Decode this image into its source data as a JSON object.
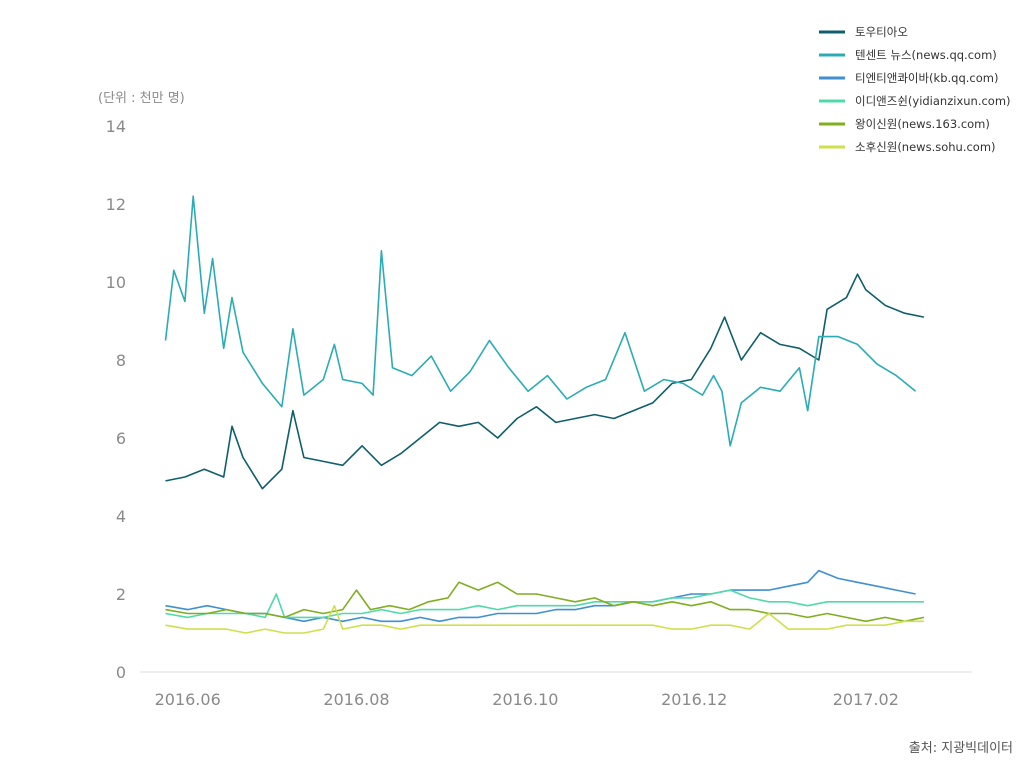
{
  "chart_data": {
    "type": "line",
    "unit_label": "(단위 : 천만 명)",
    "source_label": "출처: 지광빅데이터",
    "ylim": [
      0,
      14
    ],
    "yticks": [
      0,
      2,
      4,
      6,
      8,
      10,
      12,
      14
    ],
    "x_range": [
      "2016-05-22",
      "2017-02-26"
    ],
    "xticks": [
      {
        "date": "2016-06-01",
        "label": "2016.06"
      },
      {
        "date": "2016-08-01",
        "label": "2016.08"
      },
      {
        "date": "2016-10-01",
        "label": "2016.10"
      },
      {
        "date": "2016-12-01",
        "label": "2016.12"
      },
      {
        "date": "2017-02-01",
        "label": "2017.02"
      }
    ],
    "grid": false,
    "legend_position": "top-right",
    "series": [
      {
        "name": "토우티아오",
        "color": "#0e5f6b",
        "points": [
          [
            "2016-05-24",
            4.9
          ],
          [
            "2016-05-31",
            5.0
          ],
          [
            "2016-06-07",
            5.2
          ],
          [
            "2016-06-14",
            5.0
          ],
          [
            "2016-06-17",
            6.3
          ],
          [
            "2016-06-21",
            5.5
          ],
          [
            "2016-06-28",
            4.7
          ],
          [
            "2016-07-05",
            5.2
          ],
          [
            "2016-07-09",
            6.7
          ],
          [
            "2016-07-13",
            5.5
          ],
          [
            "2016-07-20",
            5.4
          ],
          [
            "2016-07-27",
            5.3
          ],
          [
            "2016-08-03",
            5.8
          ],
          [
            "2016-08-10",
            5.3
          ],
          [
            "2016-08-17",
            5.6
          ],
          [
            "2016-08-24",
            6.0
          ],
          [
            "2016-08-31",
            6.4
          ],
          [
            "2016-09-07",
            6.3
          ],
          [
            "2016-09-14",
            6.4
          ],
          [
            "2016-09-21",
            6.0
          ],
          [
            "2016-09-28",
            6.5
          ],
          [
            "2016-10-05",
            6.8
          ],
          [
            "2016-10-12",
            6.4
          ],
          [
            "2016-10-19",
            6.5
          ],
          [
            "2016-10-26",
            6.6
          ],
          [
            "2016-11-02",
            6.5
          ],
          [
            "2016-11-09",
            6.7
          ],
          [
            "2016-11-16",
            6.9
          ],
          [
            "2016-11-23",
            7.4
          ],
          [
            "2016-11-30",
            7.5
          ],
          [
            "2016-12-07",
            8.3
          ],
          [
            "2016-12-12",
            9.1
          ],
          [
            "2016-12-18",
            8.0
          ],
          [
            "2016-12-25",
            8.7
          ],
          [
            "2017-01-01",
            8.4
          ],
          [
            "2017-01-08",
            8.3
          ],
          [
            "2017-01-15",
            8.0
          ],
          [
            "2017-01-18",
            9.3
          ],
          [
            "2017-01-25",
            9.6
          ],
          [
            "2017-01-29",
            10.2
          ],
          [
            "2017-02-01",
            9.8
          ],
          [
            "2017-02-08",
            9.4
          ],
          [
            "2017-02-15",
            9.2
          ],
          [
            "2017-02-22",
            9.1
          ]
        ]
      },
      {
        "name": "텐센트 뉴스(news.qq.com)",
        "color": "#2aacb6",
        "points": [
          [
            "2016-05-24",
            8.5
          ],
          [
            "2016-05-27",
            10.3
          ],
          [
            "2016-05-31",
            9.5
          ],
          [
            "2016-06-03",
            12.2
          ],
          [
            "2016-06-07",
            9.2
          ],
          [
            "2016-06-10",
            10.6
          ],
          [
            "2016-06-14",
            8.3
          ],
          [
            "2016-06-17",
            9.6
          ],
          [
            "2016-06-21",
            8.2
          ],
          [
            "2016-06-28",
            7.4
          ],
          [
            "2016-07-05",
            6.8
          ],
          [
            "2016-07-09",
            8.8
          ],
          [
            "2016-07-13",
            7.1
          ],
          [
            "2016-07-20",
            7.5
          ],
          [
            "2016-07-24",
            8.4
          ],
          [
            "2016-07-27",
            7.5
          ],
          [
            "2016-08-03",
            7.4
          ],
          [
            "2016-08-07",
            7.1
          ],
          [
            "2016-08-10",
            10.8
          ],
          [
            "2016-08-14",
            7.8
          ],
          [
            "2016-08-21",
            7.6
          ],
          [
            "2016-08-28",
            8.1
          ],
          [
            "2016-09-04",
            7.2
          ],
          [
            "2016-09-11",
            7.7
          ],
          [
            "2016-09-18",
            8.5
          ],
          [
            "2016-09-25",
            7.8
          ],
          [
            "2016-10-02",
            7.2
          ],
          [
            "2016-10-09",
            7.6
          ],
          [
            "2016-10-16",
            7.0
          ],
          [
            "2016-10-23",
            7.3
          ],
          [
            "2016-10-30",
            7.5
          ],
          [
            "2016-11-06",
            8.7
          ],
          [
            "2016-11-13",
            7.2
          ],
          [
            "2016-11-20",
            7.5
          ],
          [
            "2016-11-27",
            7.4
          ],
          [
            "2016-12-04",
            7.1
          ],
          [
            "2016-12-08",
            7.6
          ],
          [
            "2016-12-11",
            7.2
          ],
          [
            "2016-12-14",
            5.8
          ],
          [
            "2016-12-18",
            6.9
          ],
          [
            "2016-12-25",
            7.3
          ],
          [
            "2017-01-01",
            7.2
          ],
          [
            "2017-01-08",
            7.8
          ],
          [
            "2017-01-11",
            6.7
          ],
          [
            "2017-01-15",
            8.6
          ],
          [
            "2017-01-22",
            8.6
          ],
          [
            "2017-01-29",
            8.4
          ],
          [
            "2017-02-05",
            7.9
          ],
          [
            "2017-02-12",
            7.6
          ],
          [
            "2017-02-19",
            7.2
          ]
        ]
      },
      {
        "name": "티엔티앤콰이바(kb.qq.com)",
        "color": "#3f8fd2",
        "points": [
          [
            "2016-05-24",
            1.7
          ],
          [
            "2016-06-01",
            1.6
          ],
          [
            "2016-06-08",
            1.7
          ],
          [
            "2016-06-15",
            1.6
          ],
          [
            "2016-06-22",
            1.5
          ],
          [
            "2016-06-29",
            1.5
          ],
          [
            "2016-07-06",
            1.4
          ],
          [
            "2016-07-13",
            1.3
          ],
          [
            "2016-07-20",
            1.4
          ],
          [
            "2016-07-27",
            1.3
          ],
          [
            "2016-08-03",
            1.4
          ],
          [
            "2016-08-10",
            1.3
          ],
          [
            "2016-08-17",
            1.3
          ],
          [
            "2016-08-24",
            1.4
          ],
          [
            "2016-08-31",
            1.3
          ],
          [
            "2016-09-07",
            1.4
          ],
          [
            "2016-09-14",
            1.4
          ],
          [
            "2016-09-21",
            1.5
          ],
          [
            "2016-09-28",
            1.5
          ],
          [
            "2016-10-05",
            1.5
          ],
          [
            "2016-10-12",
            1.6
          ],
          [
            "2016-10-19",
            1.6
          ],
          [
            "2016-10-26",
            1.7
          ],
          [
            "2016-11-02",
            1.7
          ],
          [
            "2016-11-09",
            1.8
          ],
          [
            "2016-11-16",
            1.8
          ],
          [
            "2016-11-23",
            1.9
          ],
          [
            "2016-11-30",
            2.0
          ],
          [
            "2016-12-07",
            2.0
          ],
          [
            "2016-12-14",
            2.1
          ],
          [
            "2016-12-21",
            2.1
          ],
          [
            "2016-12-28",
            2.1
          ],
          [
            "2017-01-04",
            2.2
          ],
          [
            "2017-01-11",
            2.3
          ],
          [
            "2017-01-15",
            2.6
          ],
          [
            "2017-01-22",
            2.4
          ],
          [
            "2017-01-29",
            2.3
          ],
          [
            "2017-02-05",
            2.2
          ],
          [
            "2017-02-12",
            2.1
          ],
          [
            "2017-02-19",
            2.0
          ]
        ]
      },
      {
        "name": "이디앤즈쉰(yidianzixun.com)",
        "color": "#4fdaa8",
        "points": [
          [
            "2016-05-24",
            1.5
          ],
          [
            "2016-06-01",
            1.4
          ],
          [
            "2016-06-08",
            1.5
          ],
          [
            "2016-06-15",
            1.5
          ],
          [
            "2016-06-22",
            1.5
          ],
          [
            "2016-06-29",
            1.4
          ],
          [
            "2016-07-03",
            2.0
          ],
          [
            "2016-07-06",
            1.4
          ],
          [
            "2016-07-13",
            1.4
          ],
          [
            "2016-07-20",
            1.4
          ],
          [
            "2016-07-27",
            1.5
          ],
          [
            "2016-08-03",
            1.5
          ],
          [
            "2016-08-10",
            1.6
          ],
          [
            "2016-08-17",
            1.5
          ],
          [
            "2016-08-24",
            1.6
          ],
          [
            "2016-08-31",
            1.6
          ],
          [
            "2016-09-07",
            1.6
          ],
          [
            "2016-09-14",
            1.7
          ],
          [
            "2016-09-21",
            1.6
          ],
          [
            "2016-09-28",
            1.7
          ],
          [
            "2016-10-05",
            1.7
          ],
          [
            "2016-10-12",
            1.7
          ],
          [
            "2016-10-19",
            1.7
          ],
          [
            "2016-10-26",
            1.8
          ],
          [
            "2016-11-02",
            1.8
          ],
          [
            "2016-11-09",
            1.8
          ],
          [
            "2016-11-16",
            1.8
          ],
          [
            "2016-11-23",
            1.9
          ],
          [
            "2016-11-30",
            1.9
          ],
          [
            "2016-12-07",
            2.0
          ],
          [
            "2016-12-14",
            2.1
          ],
          [
            "2016-12-21",
            1.9
          ],
          [
            "2016-12-28",
            1.8
          ],
          [
            "2017-01-04",
            1.8
          ],
          [
            "2017-01-11",
            1.7
          ],
          [
            "2017-01-18",
            1.8
          ],
          [
            "2017-01-25",
            1.8
          ],
          [
            "2017-02-01",
            1.8
          ],
          [
            "2017-02-08",
            1.8
          ],
          [
            "2017-02-15",
            1.8
          ],
          [
            "2017-02-22",
            1.8
          ]
        ]
      },
      {
        "name": "왕이신원(news.163.com)",
        "color": "#7fae1e",
        "points": [
          [
            "2016-05-24",
            1.6
          ],
          [
            "2016-06-01",
            1.5
          ],
          [
            "2016-06-08",
            1.5
          ],
          [
            "2016-06-15",
            1.6
          ],
          [
            "2016-06-22",
            1.5
          ],
          [
            "2016-06-29",
            1.5
          ],
          [
            "2016-07-06",
            1.4
          ],
          [
            "2016-07-13",
            1.6
          ],
          [
            "2016-07-20",
            1.5
          ],
          [
            "2016-07-27",
            1.6
          ],
          [
            "2016-08-01",
            2.1
          ],
          [
            "2016-08-06",
            1.6
          ],
          [
            "2016-08-13",
            1.7
          ],
          [
            "2016-08-20",
            1.6
          ],
          [
            "2016-08-27",
            1.8
          ],
          [
            "2016-09-03",
            1.9
          ],
          [
            "2016-09-07",
            2.3
          ],
          [
            "2016-09-14",
            2.1
          ],
          [
            "2016-09-21",
            2.3
          ],
          [
            "2016-09-28",
            2.0
          ],
          [
            "2016-10-05",
            2.0
          ],
          [
            "2016-10-12",
            1.9
          ],
          [
            "2016-10-19",
            1.8
          ],
          [
            "2016-10-26",
            1.9
          ],
          [
            "2016-11-02",
            1.7
          ],
          [
            "2016-11-09",
            1.8
          ],
          [
            "2016-11-16",
            1.7
          ],
          [
            "2016-11-23",
            1.8
          ],
          [
            "2016-11-30",
            1.7
          ],
          [
            "2016-12-07",
            1.8
          ],
          [
            "2016-12-14",
            1.6
          ],
          [
            "2016-12-21",
            1.6
          ],
          [
            "2016-12-28",
            1.5
          ],
          [
            "2017-01-04",
            1.5
          ],
          [
            "2017-01-11",
            1.4
          ],
          [
            "2017-01-18",
            1.5
          ],
          [
            "2017-01-25",
            1.4
          ],
          [
            "2017-02-01",
            1.3
          ],
          [
            "2017-02-08",
            1.4
          ],
          [
            "2017-02-15",
            1.3
          ],
          [
            "2017-02-22",
            1.4
          ]
        ]
      },
      {
        "name": "소후신원(news.sohu.com)",
        "color": "#cfe04a",
        "points": [
          [
            "2016-05-24",
            1.2
          ],
          [
            "2016-06-01",
            1.1
          ],
          [
            "2016-06-08",
            1.1
          ],
          [
            "2016-06-15",
            1.1
          ],
          [
            "2016-06-22",
            1.0
          ],
          [
            "2016-06-29",
            1.1
          ],
          [
            "2016-07-06",
            1.0
          ],
          [
            "2016-07-13",
            1.0
          ],
          [
            "2016-07-20",
            1.1
          ],
          [
            "2016-07-24",
            1.7
          ],
          [
            "2016-07-27",
            1.1
          ],
          [
            "2016-08-03",
            1.2
          ],
          [
            "2016-08-10",
            1.2
          ],
          [
            "2016-08-17",
            1.1
          ],
          [
            "2016-08-24",
            1.2
          ],
          [
            "2016-08-31",
            1.2
          ],
          [
            "2016-09-07",
            1.2
          ],
          [
            "2016-09-14",
            1.2
          ],
          [
            "2016-09-21",
            1.2
          ],
          [
            "2016-09-28",
            1.2
          ],
          [
            "2016-10-05",
            1.2
          ],
          [
            "2016-10-12",
            1.2
          ],
          [
            "2016-10-19",
            1.2
          ],
          [
            "2016-10-26",
            1.2
          ],
          [
            "2016-11-02",
            1.2
          ],
          [
            "2016-11-09",
            1.2
          ],
          [
            "2016-11-16",
            1.2
          ],
          [
            "2016-11-23",
            1.1
          ],
          [
            "2016-11-30",
            1.1
          ],
          [
            "2016-12-07",
            1.2
          ],
          [
            "2016-12-14",
            1.2
          ],
          [
            "2016-12-21",
            1.1
          ],
          [
            "2016-12-28",
            1.5
          ],
          [
            "2017-01-04",
            1.1
          ],
          [
            "2017-01-11",
            1.1
          ],
          [
            "2017-01-18",
            1.1
          ],
          [
            "2017-01-25",
            1.2
          ],
          [
            "2017-02-01",
            1.2
          ],
          [
            "2017-02-08",
            1.2
          ],
          [
            "2017-02-15",
            1.3
          ],
          [
            "2017-02-22",
            1.3
          ]
        ]
      }
    ]
  }
}
